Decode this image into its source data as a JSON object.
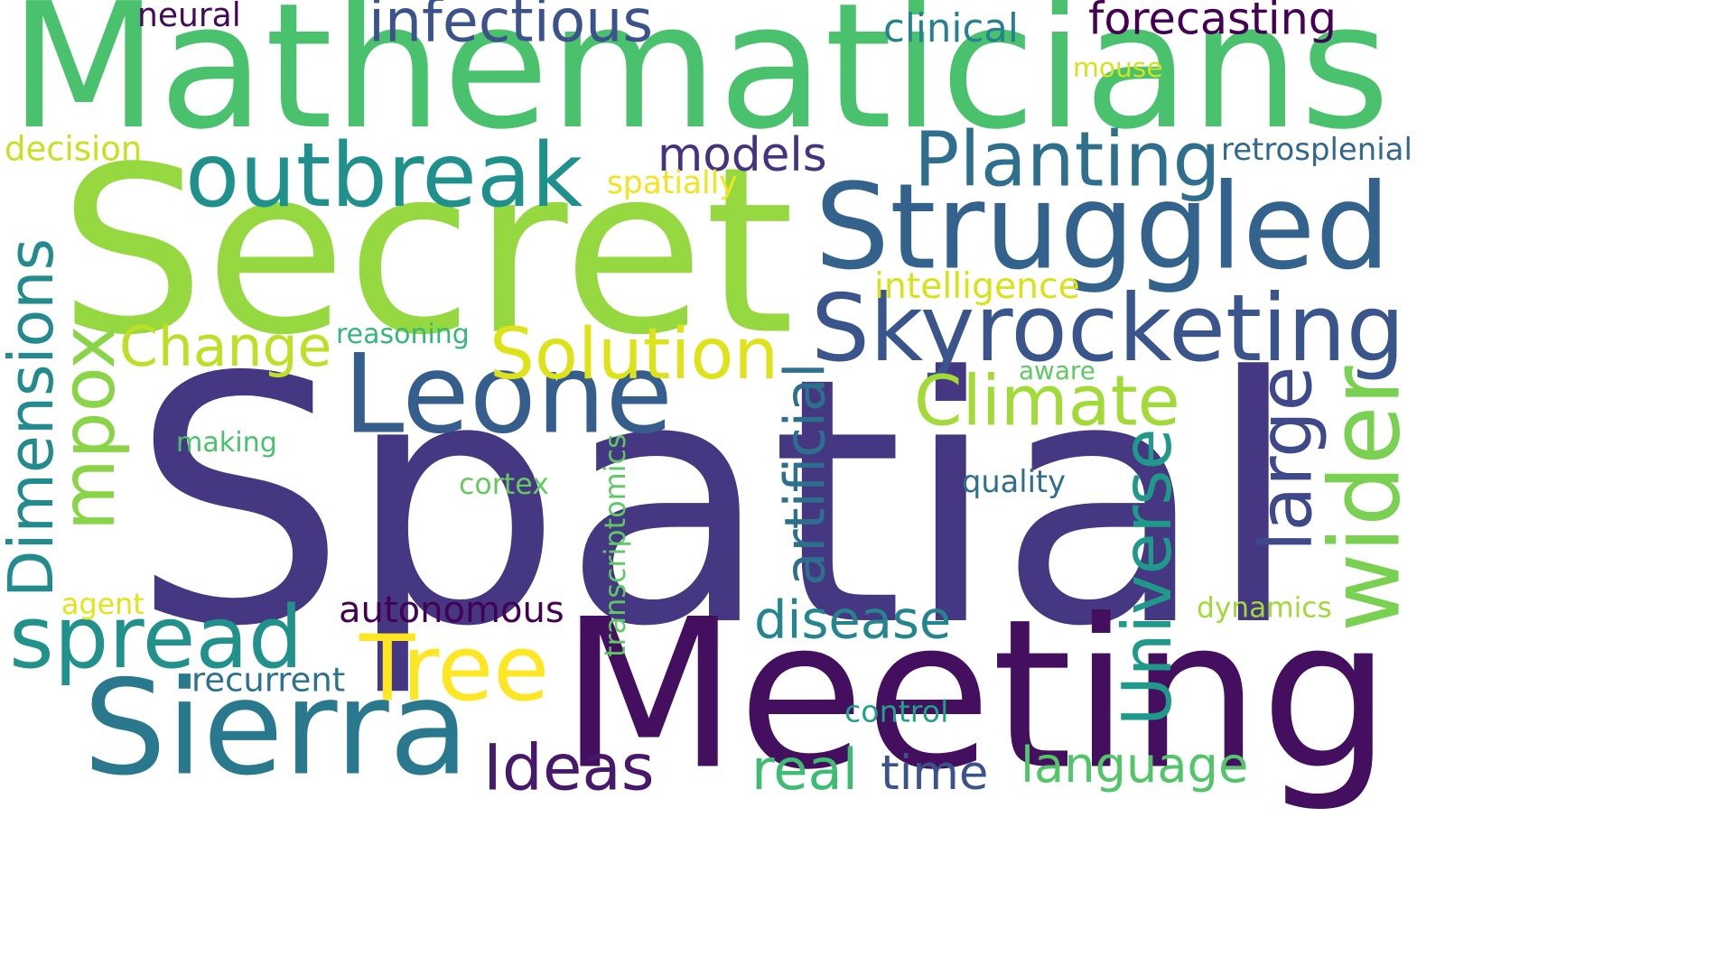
{
  "words": [
    {
      "text": "Spatial",
      "color": "#453781"
    },
    {
      "text": "Mathematicians",
      "color": "#4ac16d"
    },
    {
      "text": "Secret",
      "color": "#95d840"
    },
    {
      "text": "Meeting",
      "color": "#440f5e"
    },
    {
      "text": "Struggled",
      "color": "#33638d"
    },
    {
      "text": "Skyrocketing",
      "color": "#39558c"
    },
    {
      "text": "Leone",
      "color": "#355e8d"
    },
    {
      "text": "outbreak",
      "color": "#20908d"
    },
    {
      "text": "Sierra",
      "color": "#2a788e"
    },
    {
      "text": "Planting",
      "color": "#2e6f8e"
    },
    {
      "text": "spread",
      "color": "#21918c"
    },
    {
      "text": "Climate",
      "color": "#a2da37"
    },
    {
      "text": "Tree",
      "color": "#fde725"
    },
    {
      "text": "Solution",
      "color": "#dde318"
    },
    {
      "text": "Change",
      "color": "#bddf26"
    },
    {
      "text": "Universe",
      "color": "#1f9a8a"
    },
    {
      "text": "infectious",
      "color": "#3b528b"
    },
    {
      "text": "Dimensions",
      "color": "#238a8d"
    },
    {
      "text": "mpox",
      "color": "#8ad547"
    },
    {
      "text": "wider",
      "color": "#7ad151"
    },
    {
      "text": "large",
      "color": "#3e4989"
    },
    {
      "text": "Ideas",
      "color": "#48186a"
    },
    {
      "text": "models",
      "color": "#46337f"
    },
    {
      "text": "disease",
      "color": "#25858e"
    },
    {
      "text": "language",
      "color": "#52c569"
    },
    {
      "text": "real",
      "color": "#3fbc73"
    },
    {
      "text": "time",
      "color": "#3b528b"
    },
    {
      "text": "forecasting",
      "color": "#440154"
    },
    {
      "text": "autonomous",
      "color": "#440154"
    },
    {
      "text": "artificial",
      "color": "#2d708e"
    },
    {
      "text": "recurrent",
      "color": "#2c728e"
    },
    {
      "text": "transcriptomics",
      "color": "#5ec962"
    },
    {
      "text": "clinical",
      "color": "#26828e"
    },
    {
      "text": "neural",
      "color": "#46085c"
    },
    {
      "text": "mouse",
      "color": "#d2e21b"
    },
    {
      "text": "decision",
      "color": "#c8e020"
    },
    {
      "text": "spatially",
      "color": "#f1e51d"
    },
    {
      "text": "retrosplenial",
      "color": "#31688e"
    },
    {
      "text": "intelligence",
      "color": "#d8e219"
    },
    {
      "text": "reasoning",
      "color": "#35b779"
    },
    {
      "text": "aware",
      "color": "#5ec962"
    },
    {
      "text": "making",
      "color": "#4ac16d"
    },
    {
      "text": "cortex",
      "color": "#65cb5e"
    },
    {
      "text": "quality",
      "color": "#2e6e8e"
    },
    {
      "text": "agent",
      "color": "#e2e418"
    },
    {
      "text": "dynamics",
      "color": "#a0da39"
    },
    {
      "text": "control",
      "color": "#1fa188"
    }
  ]
}
